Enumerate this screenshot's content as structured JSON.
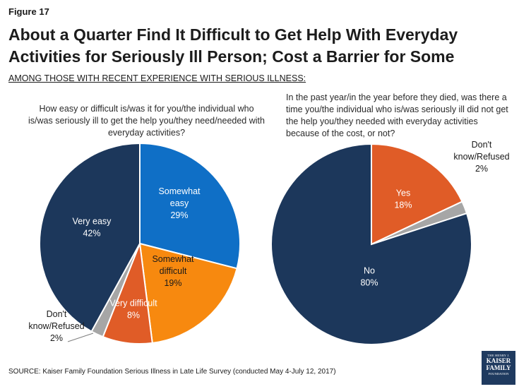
{
  "figure_label": "Figure 17",
  "title": "About a Quarter Find It Difficult to Get Help With Everyday Activities for Seriously Ill Person; Cost a Barrier for Some",
  "subtitle": "AMONG THOSE WITH RECENT EXPERIENCE WITH SERIOUS ILLNESS:",
  "source": "SOURCE: Kaiser Family Foundation Serious Illness in Late Life Survey (conducted May 4-July 12, 2017)",
  "logo": {
    "line1": "THE HENRY J.",
    "line2": "KAISER",
    "line3": "FAMILY",
    "line4": "FOUNDATION"
  },
  "chart_data": [
    {
      "type": "pie",
      "question": "How easy or difficult is/was it for you/the individual who is/was seriously ill to get the help you/they need/needed with everyday activities?",
      "slices": [
        {
          "label_lines": [
            "Somewhat",
            "easy"
          ],
          "value_text": "29%",
          "value": 29,
          "color": "#0f6fc6"
        },
        {
          "label_lines": [
            "Somewhat",
            "difficult"
          ],
          "value_text": "19%",
          "value": 19,
          "color": "#f7890f"
        },
        {
          "label_lines": [
            "Very difficult"
          ],
          "value_text": "8%",
          "value": 8,
          "color": "#e05c27"
        },
        {
          "label_lines": [
            "Don't",
            "know/Refused"
          ],
          "value_text": "2%",
          "value": 2,
          "color": "#a6a6a6"
        },
        {
          "label_lines": [
            "Very easy"
          ],
          "value_text": "42%",
          "value": 42,
          "color": "#1c375b"
        }
      ]
    },
    {
      "type": "pie",
      "question": "In the past year/in the year before they died, was there a time you/the individual who is/was seriously ill did not get the help you/they needed with everyday activities because of the cost, or not?",
      "slices": [
        {
          "label_lines": [
            "Yes"
          ],
          "value_text": "18%",
          "value": 18,
          "color": "#e05c27"
        },
        {
          "label_lines": [
            "Don't",
            "know/Refused"
          ],
          "value_text": "2%",
          "value": 2,
          "color": "#a6a6a6"
        },
        {
          "label_lines": [
            "No"
          ],
          "value_text": "80%",
          "value": 80,
          "color": "#1c375b"
        }
      ]
    }
  ]
}
